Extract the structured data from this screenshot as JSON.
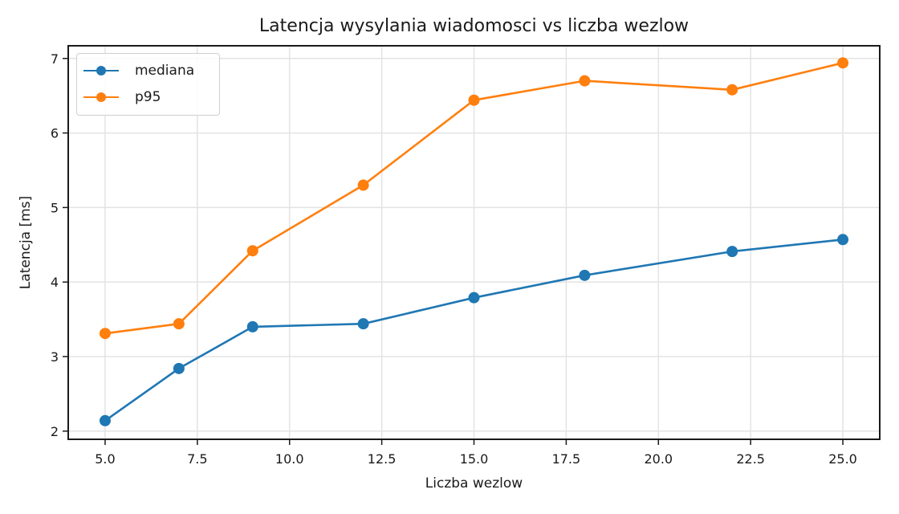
{
  "chart_data": {
    "type": "line",
    "title": "Latencja wysylania wiadomosci vs liczba wezlow",
    "xlabel": "Liczba wezlow",
    "ylabel": "Latencja [ms]",
    "x": [
      5,
      7,
      9,
      12,
      15,
      18,
      22,
      25
    ],
    "series": [
      {
        "name": "mediana",
        "color": "#1f77b4",
        "marker": "circle",
        "values": [
          2.14,
          2.84,
          3.4,
          3.44,
          3.79,
          4.09,
          4.41,
          4.57
        ]
      },
      {
        "name": "p95",
        "color": "#ff7f0e",
        "marker": "circle",
        "values": [
          3.31,
          3.44,
          4.42,
          5.3,
          6.44,
          6.7,
          6.58,
          6.94
        ]
      }
    ],
    "xlim": [
      4.0,
      26.0
    ],
    "ylim": [
      1.89,
      7.17
    ],
    "xticks": [
      5.0,
      7.5,
      10.0,
      12.5,
      15.0,
      17.5,
      20.0,
      22.5,
      25.0
    ],
    "xtick_labels": [
      "5.0",
      "7.5",
      "10.0",
      "12.5",
      "15.0",
      "17.5",
      "20.0",
      "22.5",
      "25.0"
    ],
    "yticks": [
      2,
      3,
      4,
      5,
      6,
      7
    ],
    "ytick_labels": [
      "2",
      "3",
      "4",
      "5",
      "6",
      "7"
    ],
    "grid": true,
    "legend_position": "upper left"
  },
  "legend": {
    "items": [
      {
        "label": "mediana",
        "color": "#1f77b4"
      },
      {
        "label": "p95",
        "color": "#ff7f0e"
      }
    ]
  }
}
